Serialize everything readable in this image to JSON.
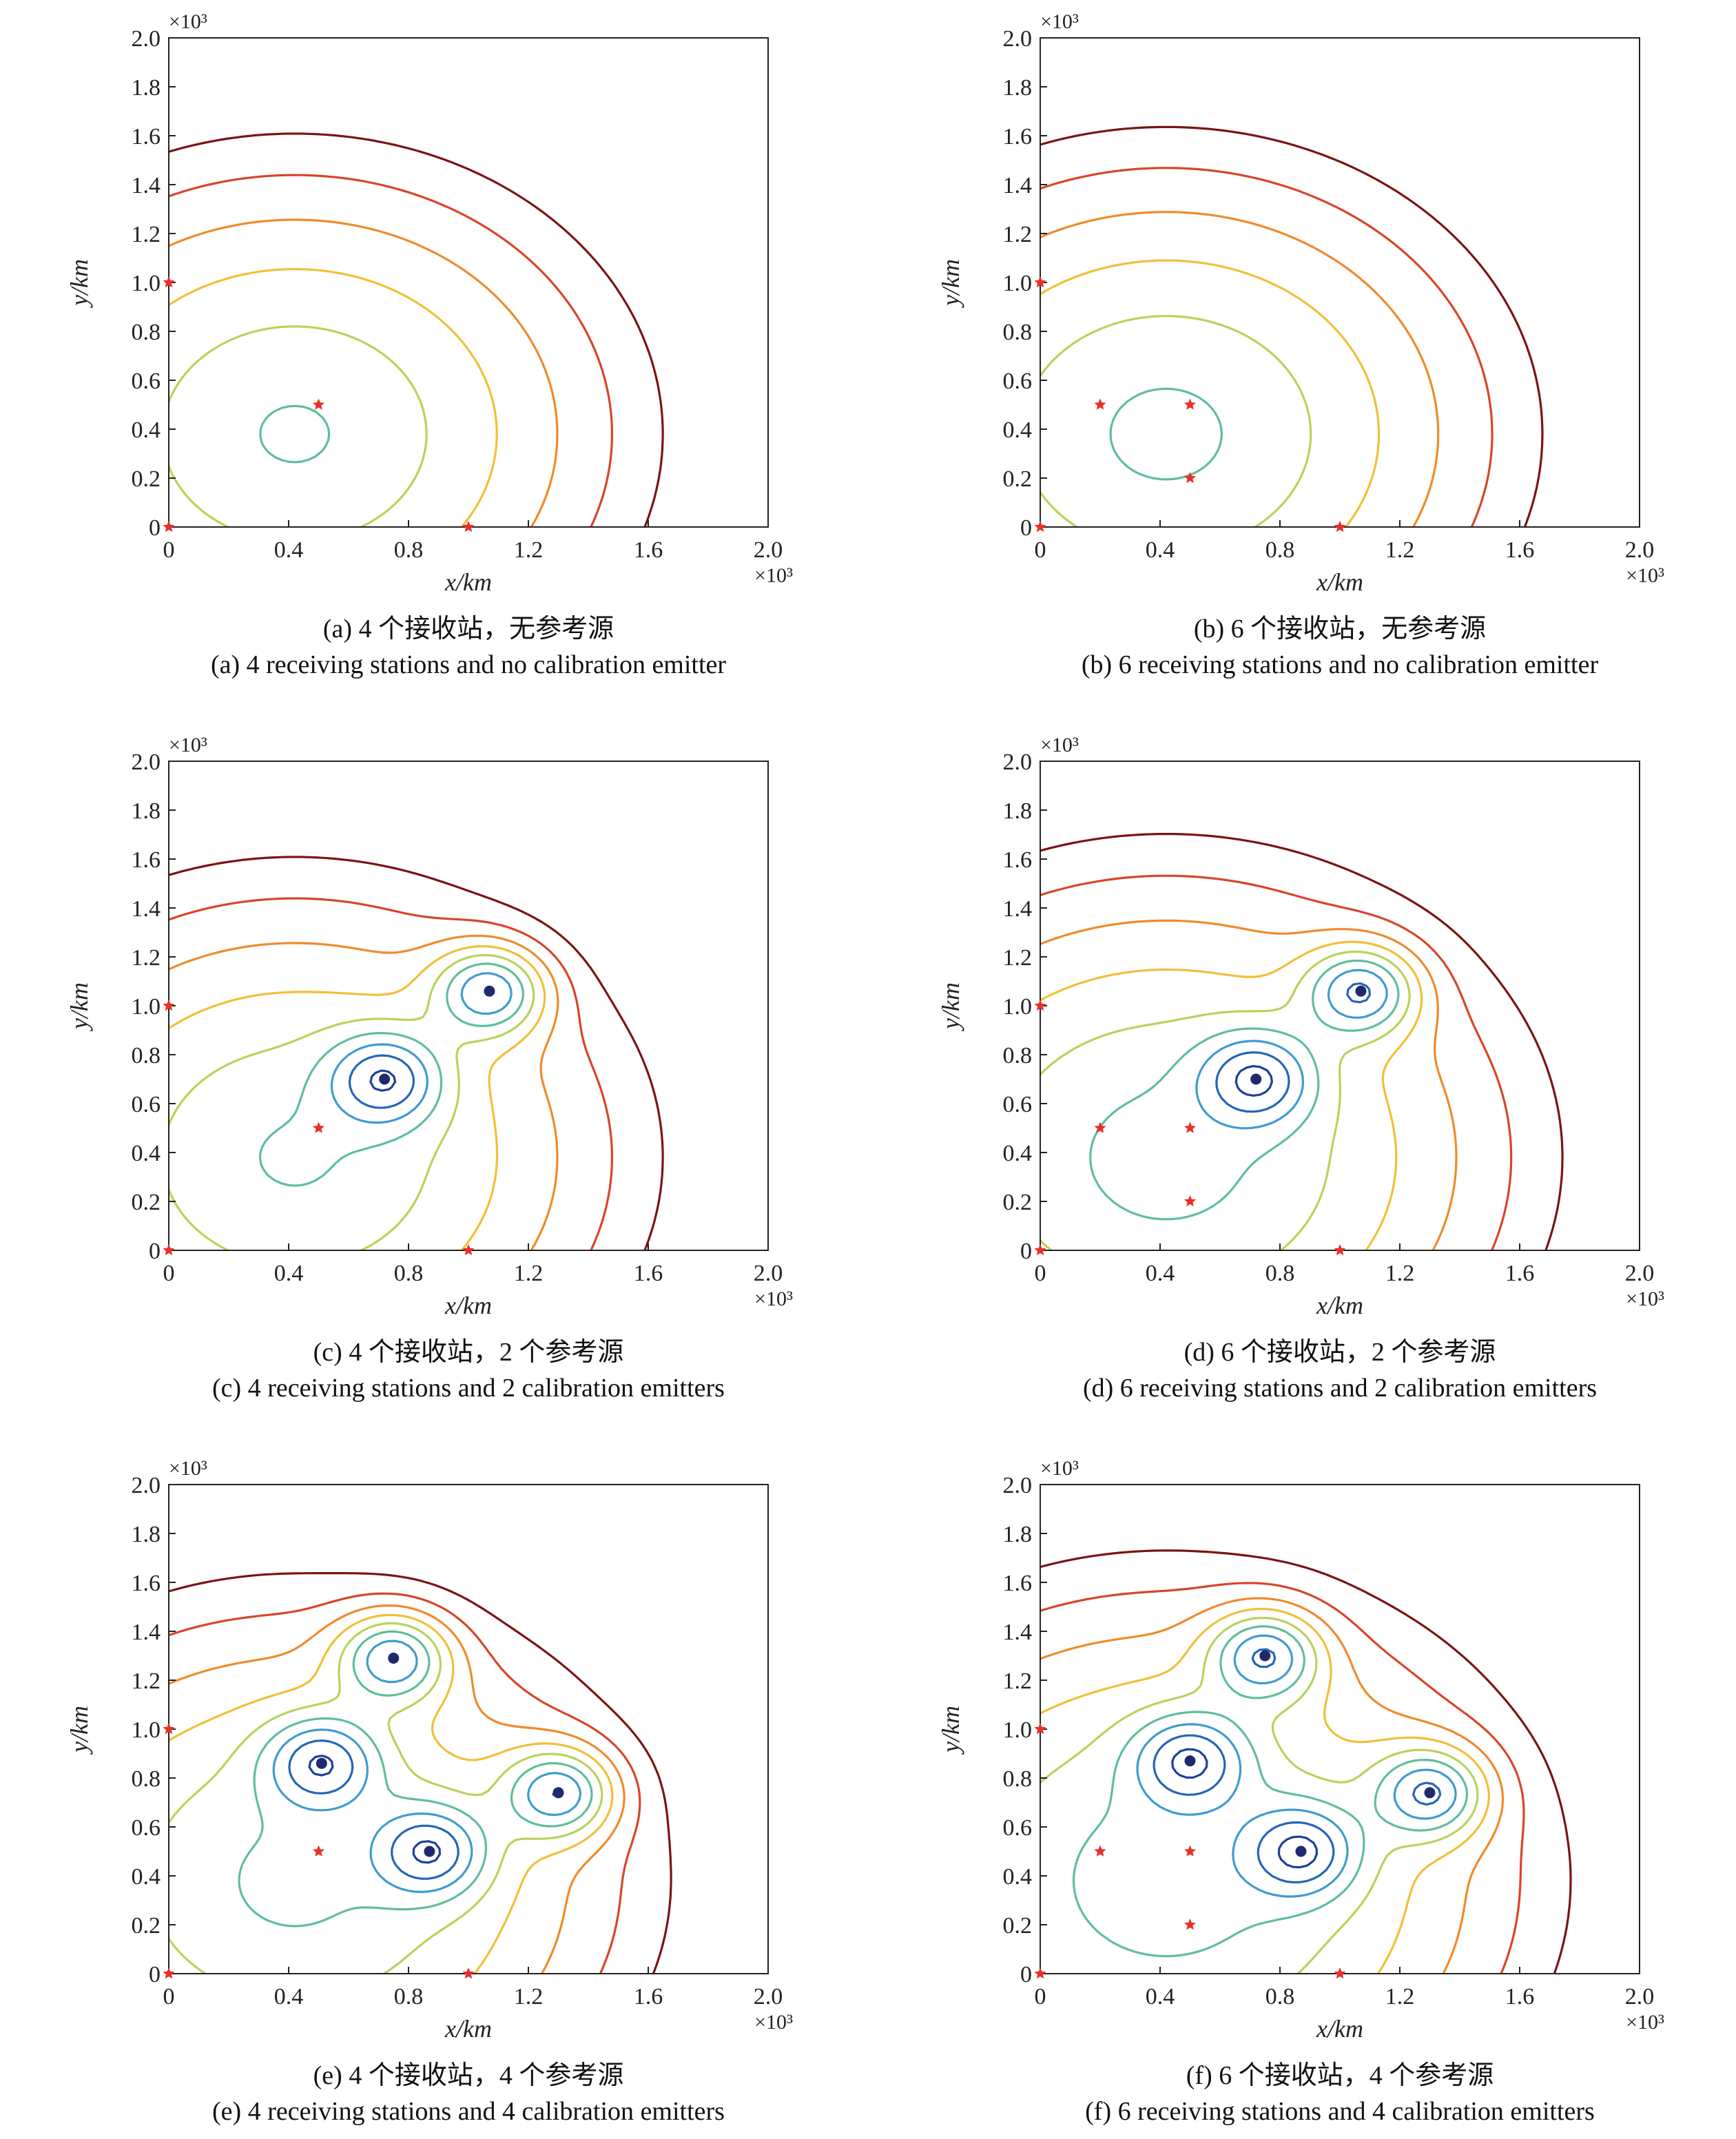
{
  "figure": {
    "panels": [
      {
        "id": "a",
        "caption_cn": "(a) 4 个接收站，无参考源",
        "caption_en": "(a) 4 receiving stations and no calibration emitter",
        "chart_data": {
          "type": "contour",
          "xlabel": "x/km",
          "ylabel": "y/km",
          "x_scale_label": "×10³",
          "y_scale_label": "×10³",
          "xlim": [
            0,
            2.0
          ],
          "ylim": [
            0,
            2.0
          ],
          "x_ticks": [
            "0",
            "0.4",
            "0.8",
            "1.2",
            "1.6",
            "2.0"
          ],
          "y_ticks": [
            "0",
            "0.2",
            "0.4",
            "0.6",
            "0.8",
            "1.0",
            "1.2",
            "1.4",
            "1.6",
            "1.8",
            "2.0"
          ],
          "receivers": [
            [
              0,
              0
            ],
            [
              0,
              1.0
            ],
            [
              1.0,
              0
            ],
            [
              0.5,
              0.5
            ]
          ],
          "calibration_emitters": [],
          "contour_levels": [
            "24",
            "27",
            "30",
            "33",
            "36",
            "39"
          ],
          "field": {
            "base": 23.5,
            "k": 11.5,
            "p": 1.45,
            "minima": [
              [
                0.42,
                0.38
              ]
            ],
            "sources": []
          }
        }
      },
      {
        "id": "b",
        "caption_cn": "(b) 6 个接收站，无参考源",
        "caption_en": "(b) 6 receiving stations and no calibration emitter",
        "chart_data": {
          "type": "contour",
          "xlabel": "x/km",
          "ylabel": "y/km",
          "x_scale_label": "×10³",
          "y_scale_label": "×10³",
          "xlim": [
            0,
            2.0
          ],
          "ylim": [
            0,
            2.0
          ],
          "x_ticks": [
            "0",
            "0.4",
            "0.8",
            "1.2",
            "1.6",
            "2.0"
          ],
          "y_ticks": [
            "0",
            "0.2",
            "0.4",
            "0.6",
            "0.8",
            "1.0",
            "1.2",
            "1.4",
            "1.6",
            "1.8",
            "2.0"
          ],
          "receivers": [
            [
              0,
              0
            ],
            [
              0,
              1.0
            ],
            [
              1.0,
              0
            ],
            [
              0.2,
              0.5
            ],
            [
              0.5,
              0.5
            ],
            [
              0.5,
              0.2
            ]
          ],
          "calibration_emitters": [],
          "contour_levels": [
            "24",
            "27",
            "30",
            "33",
            "36",
            "39"
          ],
          "field": {
            "base": 23.0,
            "k": 11.5,
            "p": 1.45,
            "minima": [
              [
                0.42,
                0.38
              ]
            ],
            "sources": []
          }
        }
      },
      {
        "id": "c",
        "caption_cn": "(c) 4 个接收站，2 个参考源",
        "caption_en": "(c) 4 receiving stations and 2 calibration emitters",
        "chart_data": {
          "type": "contour",
          "xlabel": "x/km",
          "ylabel": "y/km",
          "x_scale_label": "×10³",
          "y_scale_label": "×10³",
          "xlim": [
            0,
            2.0
          ],
          "ylim": [
            0,
            2.0
          ],
          "x_ticks": [
            "0",
            "0.4",
            "0.8",
            "1.2",
            "1.6",
            "2.0"
          ],
          "y_ticks": [
            "0",
            "0.2",
            "0.4",
            "0.6",
            "0.8",
            "1.0",
            "1.2",
            "1.4",
            "1.6",
            "1.8",
            "2.0"
          ],
          "receivers": [
            [
              0,
              0
            ],
            [
              0,
              1.0
            ],
            [
              1.0,
              0
            ],
            [
              0.5,
              0.5
            ]
          ],
          "calibration_emitters": [
            [
              0.72,
              0.7
            ],
            [
              1.07,
              1.06
            ]
          ],
          "contour_levels": [
            "12",
            "15",
            "18",
            "21",
            "24",
            "27",
            "30",
            "33",
            "36",
            "39"
          ],
          "field": {
            "base": 23.5,
            "k": 11.5,
            "p": 1.45,
            "minima": [
              [
                0.42,
                0.38
              ]
            ],
            "sources": [
              [
                0.72,
                0.7,
                0.13
              ],
              [
                1.07,
                1.06,
                0.13
              ]
            ]
          }
        }
      },
      {
        "id": "d",
        "caption_cn": "(d) 6 个接收站，2 个参考源",
        "caption_en": "(d) 6 receiving stations and 2 calibration emitters",
        "chart_data": {
          "type": "contour",
          "xlabel": "x/km",
          "ylabel": "y/km",
          "x_scale_label": "×10³",
          "y_scale_label": "×10³",
          "xlim": [
            0,
            2.0
          ],
          "ylim": [
            0,
            2.0
          ],
          "x_ticks": [
            "0",
            "0.4",
            "0.8",
            "1.2",
            "1.6",
            "2.0"
          ],
          "y_ticks": [
            "0",
            "0.2",
            "0.4",
            "0.6",
            "0.8",
            "1.0",
            "1.2",
            "1.4",
            "1.6",
            "1.8",
            "2.0"
          ],
          "receivers": [
            [
              0,
              0
            ],
            [
              0,
              1.0
            ],
            [
              1.0,
              0
            ],
            [
              0.2,
              0.5
            ],
            [
              0.5,
              0.5
            ],
            [
              0.5,
              0.2
            ]
          ],
          "calibration_emitters": [
            [
              0.72,
              0.7
            ],
            [
              1.07,
              1.06
            ]
          ],
          "contour_levels": [
            "12",
            "15",
            "18",
            "21",
            "24",
            "27",
            "30",
            "33",
            "36",
            "39"
          ],
          "field": {
            "base": 22.5,
            "k": 11.0,
            "p": 1.45,
            "minima": [
              [
                0.42,
                0.38
              ]
            ],
            "sources": [
              [
                0.72,
                0.7,
                0.13
              ],
              [
                1.07,
                1.06,
                0.13
              ]
            ]
          }
        }
      },
      {
        "id": "e",
        "caption_cn": "(e) 4 个接收站，4 个参考源",
        "caption_en": "(e) 4 receiving stations and 4 calibration emitters",
        "chart_data": {
          "type": "contour",
          "xlabel": "x/km",
          "ylabel": "y/km",
          "x_scale_label": "×10³",
          "y_scale_label": "×10³",
          "xlim": [
            0,
            2.0
          ],
          "ylim": [
            0,
            2.0
          ],
          "x_ticks": [
            "0",
            "0.4",
            "0.8",
            "1.2",
            "1.6",
            "2.0"
          ],
          "y_ticks": [
            "0",
            "0.2",
            "0.4",
            "0.6",
            "0.8",
            "1.0",
            "1.2",
            "1.4",
            "1.6",
            "1.8",
            "2.0"
          ],
          "receivers": [
            [
              0,
              0
            ],
            [
              0,
              1.0
            ],
            [
              1.0,
              0
            ],
            [
              0.5,
              0.5
            ]
          ],
          "calibration_emitters": [
            [
              0.51,
              0.86
            ],
            [
              0.75,
              1.29
            ],
            [
              0.87,
              0.5
            ],
            [
              1.3,
              0.74
            ]
          ],
          "contour_levels": [
            "12",
            "15",
            "18",
            "21",
            "24",
            "27",
            "30",
            "33",
            "36",
            "39"
          ],
          "field": {
            "base": 23.0,
            "k": 11.5,
            "p": 1.45,
            "minima": [
              [
                0.42,
                0.38
              ]
            ],
            "sources": [
              [
                0.51,
                0.86,
                0.13
              ],
              [
                0.75,
                1.29,
                0.13
              ],
              [
                0.87,
                0.5,
                0.13
              ],
              [
                1.3,
                0.74,
                0.13
              ]
            ]
          }
        }
      },
      {
        "id": "f",
        "caption_cn": "(f) 6 个接收站，4 个参考源",
        "caption_en": "(f) 6 receiving stations and 4 calibration emitters",
        "chart_data": {
          "type": "contour",
          "xlabel": "x/km",
          "ylabel": "y/km",
          "x_scale_label": "×10³",
          "y_scale_label": "×10³",
          "xlim": [
            0,
            2.0
          ],
          "ylim": [
            0,
            2.0
          ],
          "x_ticks": [
            "0",
            "0.4",
            "0.8",
            "1.2",
            "1.6",
            "2.0"
          ],
          "y_ticks": [
            "0",
            "0.2",
            "0.4",
            "0.6",
            "0.8",
            "1.0",
            "1.2",
            "1.4",
            "1.6",
            "1.8",
            "2.0"
          ],
          "receivers": [
            [
              0,
              0
            ],
            [
              0,
              1.0
            ],
            [
              1.0,
              0
            ],
            [
              0.2,
              0.5
            ],
            [
              0.5,
              0.5
            ],
            [
              0.5,
              0.2
            ]
          ],
          "calibration_emitters": [
            [
              0.5,
              0.87
            ],
            [
              0.75,
              1.3
            ],
            [
              0.87,
              0.5
            ],
            [
              1.3,
              0.74
            ]
          ],
          "contour_levels": [
            "12",
            "15",
            "18",
            "21",
            "24",
            "27",
            "30",
            "33",
            "36",
            "39"
          ],
          "field": {
            "base": 22.0,
            "k": 11.0,
            "p": 1.45,
            "minima": [
              [
                0.42,
                0.38
              ]
            ],
            "sources": [
              [
                0.5,
                0.87,
                0.13
              ],
              [
                0.75,
                1.3,
                0.13
              ],
              [
                0.87,
                0.5,
                0.13
              ],
              [
                1.3,
                0.74,
                0.13
              ]
            ]
          }
        }
      }
    ],
    "level_colors": {
      "12": "#1f2a6e",
      "15": "#1f3f9a",
      "18": "#2565b8",
      "21": "#3f9bd0",
      "24": "#5fbe9a",
      "27": "#b8d35a",
      "30": "#f0c038",
      "33": "#f08a2c",
      "36": "#d8452a",
      "39": "#7a1414"
    },
    "marker_color": "#e8302a"
  }
}
